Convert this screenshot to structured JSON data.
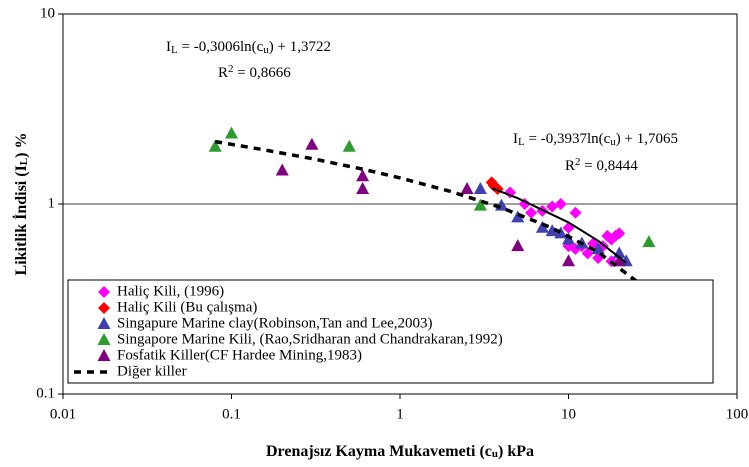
{
  "chart_data": {
    "type": "scatter",
    "xlabel": [
      "Drenajsız Kayma Mukavemeti (c",
      "u",
      ") kPa"
    ],
    "ylabel": [
      "Likitlik İndisi (I",
      "L",
      ") %"
    ],
    "xlim": [
      0.01,
      100
    ],
    "ylim": [
      0.1,
      10
    ],
    "xticks": [
      0.01,
      0.1,
      1,
      10,
      100
    ],
    "yticks": [
      0.1,
      1,
      10
    ],
    "xscale": "log",
    "yscale": "log",
    "grid": true,
    "annotations": [
      {
        "equation": [
          "I",
          "L",
          " = -0,3006ln(c",
          "u",
          ") + 1,3722"
        ],
        "r2": [
          "R",
          "2",
          " = 0,8666"
        ]
      },
      {
        "equation": [
          "I",
          "L",
          " = -0,3937ln(c",
          "u",
          ") + 1,7065"
        ],
        "r2": [
          "R",
          "2",
          " = 0,8444"
        ]
      }
    ],
    "series": [
      {
        "name": "Haliç Kili, (1996)",
        "color": "#ff00ff",
        "marker": "diamond",
        "x": [
          4.5,
          5.5,
          6,
          7,
          8,
          9,
          10,
          11,
          10,
          12,
          13,
          15,
          16,
          17,
          18,
          18,
          19,
          20,
          11,
          14
        ],
        "values": [
          1.15,
          1.0,
          0.9,
          0.92,
          0.97,
          1.0,
          0.75,
          0.9,
          0.6,
          0.6,
          0.55,
          0.52,
          0.6,
          0.68,
          0.65,
          0.5,
          0.68,
          0.7,
          0.58,
          0.62
        ]
      },
      {
        "name": "Haliç Kili (Bu çalışma)",
        "color": "#ff0000",
        "marker": "diamond",
        "x": [
          3.5,
          3.6,
          3.8
        ],
        "values": [
          1.3,
          1.25,
          1.2
        ]
      },
      {
        "name": "Singapure Marine clay(Robinson,Tan and Lee,2003)",
        "color": "#4040b0",
        "marker": "triangle",
        "x": [
          3,
          4,
          5,
          7,
          8,
          9,
          10,
          12,
          15,
          20,
          22
        ],
        "values": [
          1.2,
          0.98,
          0.85,
          0.75,
          0.72,
          0.7,
          0.65,
          0.62,
          0.58,
          0.55,
          0.5
        ]
      },
      {
        "name": "Singapore Marine Kili, (Rao,Sridharan and Chandrakaran,1992)",
        "color": "#2e9b2e",
        "marker": "triangle",
        "x": [
          0.08,
          0.1,
          0.5,
          3,
          30
        ],
        "values": [
          2.0,
          2.35,
          2.0,
          0.98,
          0.63
        ]
      },
      {
        "name": "Fosfatik Killer(CF Hardee Mining,1983)",
        "color": "#800080",
        "marker": "triangle",
        "x": [
          0.2,
          0.3,
          0.6,
          0.6,
          2.5,
          5,
          10,
          20
        ],
        "values": [
          1.5,
          2.05,
          1.4,
          1.2,
          1.2,
          0.6,
          0.5,
          0.5
        ]
      },
      {
        "name": "Diğer killer",
        "color": "#000000",
        "marker": "dashed",
        "x": [
          0.08,
          0.15,
          0.3,
          0.6,
          1,
          2,
          4,
          8,
          15,
          30
        ],
        "values": [
          2.13,
          1.94,
          1.734,
          1.526,
          1.372,
          1.164,
          0.956,
          0.747,
          0.558,
          0.35
        ]
      }
    ],
    "trendline": {
      "color": "#000000",
      "x": [
        3.5,
        5,
        10,
        15,
        22
      ],
      "values": [
        1.213,
        1.073,
        0.8,
        0.64,
        0.49
      ]
    }
  }
}
